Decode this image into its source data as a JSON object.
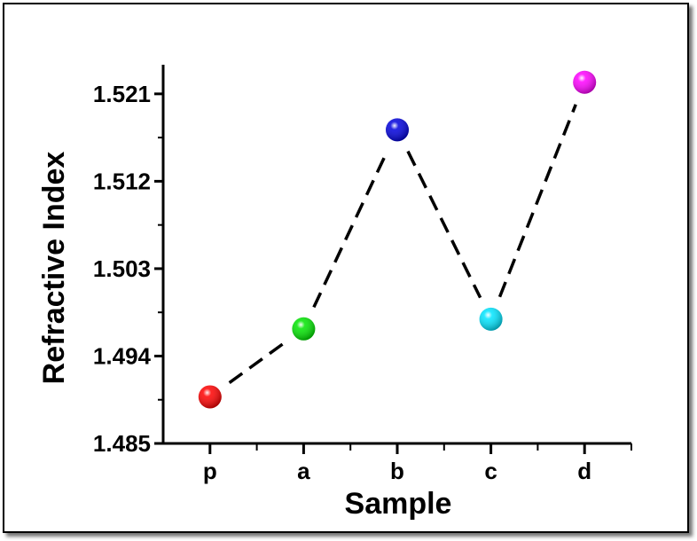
{
  "chart_data": {
    "type": "line",
    "xlabel": "Sample",
    "ylabel": "Refractive Index",
    "categories": [
      "p",
      "a",
      "b",
      "c",
      "d"
    ],
    "ylim": [
      1.485,
      1.524
    ],
    "yticks": [
      "1.485",
      "1.494",
      "1.503",
      "1.512",
      "1.521"
    ],
    "series": [
      {
        "values": [
          1.4898,
          1.4968,
          1.5173,
          1.4978,
          1.5222
        ],
        "point_colors": [
          "#ff0000",
          "#00e600",
          "#0000dd",
          "#00e5ff",
          "#ff00ff"
        ]
      }
    ],
    "line_style": "dashed",
    "grid": false,
    "legend": "none"
  }
}
